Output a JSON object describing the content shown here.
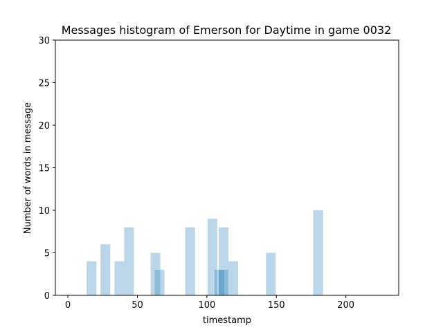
{
  "chart_data": {
    "type": "bar",
    "title": "Messages histogram of Emerson for Daytime in game 0032",
    "xlabel": "timestamp",
    "ylabel": "Number of words in message",
    "xlim": [
      -9,
      238
    ],
    "ylim": [
      0,
      30
    ],
    "xticks": [
      0,
      50,
      100,
      150,
      200
    ],
    "yticks": [
      0,
      5,
      10,
      15,
      20,
      25,
      30
    ],
    "bar_width": 7,
    "bar_color": "#1f77b4",
    "bar_opacity": 0.3,
    "grid": false,
    "bars": [
      {
        "x": 17,
        "value": 4
      },
      {
        "x": 27,
        "value": 6
      },
      {
        "x": 37,
        "value": 4
      },
      {
        "x": 44,
        "value": 8
      },
      {
        "x": 63,
        "value": 5
      },
      {
        "x": 66,
        "value": 3
      },
      {
        "x": 88,
        "value": 8
      },
      {
        "x": 104,
        "value": 9
      },
      {
        "x": 109,
        "value": 3
      },
      {
        "x": 112,
        "value": 8
      },
      {
        "x": 112,
        "value": 3
      },
      {
        "x": 119,
        "value": 4
      },
      {
        "x": 146,
        "value": 5
      },
      {
        "x": 180,
        "value": 10
      }
    ]
  }
}
